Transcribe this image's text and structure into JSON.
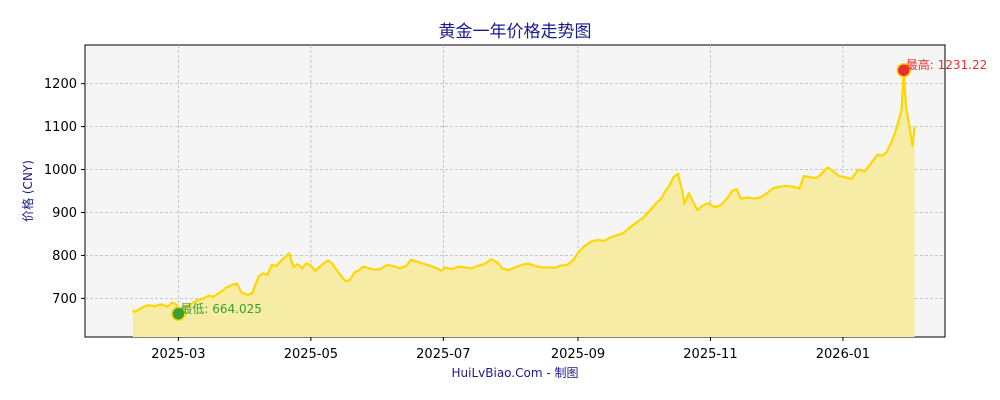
{
  "chart_data": {
    "type": "area",
    "title": "黄金一年价格走势图",
    "ylabel": "价格 (CNY)",
    "xlabel": "",
    "credit": "HuiLvBiao.Com - 制图",
    "xlim": [
      "2025-01-17",
      "2026-02-17"
    ],
    "ylim": [
      610,
      1290
    ],
    "yticks": [
      700,
      800,
      900,
      1000,
      1100,
      1200
    ],
    "xticks": [
      {
        "date": "2025-03-01",
        "label": "2025-03"
      },
      {
        "date": "2025-05-01",
        "label": "2025-05"
      },
      {
        "date": "2025-07-01",
        "label": "2025-07"
      },
      {
        "date": "2025-09-01",
        "label": "2025-09"
      },
      {
        "date": "2025-11-01",
        "label": "2025-11"
      },
      {
        "date": "2026-01-01",
        "label": "2026-01"
      }
    ],
    "grid": true,
    "series": [
      {
        "line_color": "#ffd700",
        "fill_color": "#f7eca6",
        "points": [
          [
            "2025-02-08",
            673
          ],
          [
            "2025-02-09",
            668
          ],
          [
            "2025-02-12",
            678
          ],
          [
            "2025-02-15",
            684
          ],
          [
            "2025-02-18",
            682
          ],
          [
            "2025-02-21",
            686
          ],
          [
            "2025-02-24",
            681
          ],
          [
            "2025-02-26",
            690
          ],
          [
            "2025-02-28",
            686
          ],
          [
            "2025-03-01",
            664.025
          ],
          [
            "2025-03-03",
            678
          ],
          [
            "2025-03-06",
            684
          ],
          [
            "2025-03-09",
            694
          ],
          [
            "2025-03-12",
            699
          ],
          [
            "2025-03-15",
            706
          ],
          [
            "2025-03-17",
            704
          ],
          [
            "2025-03-20",
            713
          ],
          [
            "2025-03-23",
            725
          ],
          [
            "2025-03-26",
            732
          ],
          [
            "2025-03-28",
            734
          ],
          [
            "2025-03-30",
            714
          ],
          [
            "2025-04-02",
            708
          ],
          [
            "2025-04-04",
            712
          ],
          [
            "2025-04-07",
            752
          ],
          [
            "2025-04-09",
            758
          ],
          [
            "2025-04-11",
            755
          ],
          [
            "2025-04-13",
            778
          ],
          [
            "2025-04-15",
            775
          ],
          [
            "2025-04-18",
            791
          ],
          [
            "2025-04-21",
            805
          ],
          [
            "2025-04-23",
            773
          ],
          [
            "2025-04-25",
            780
          ],
          [
            "2025-04-27",
            770
          ],
          [
            "2025-04-29",
            782
          ],
          [
            "2025-05-01",
            776
          ],
          [
            "2025-05-03",
            764
          ],
          [
            "2025-05-05",
            773
          ],
          [
            "2025-05-07",
            782
          ],
          [
            "2025-05-09",
            788
          ],
          [
            "2025-05-11",
            780
          ],
          [
            "2025-05-13",
            765
          ],
          [
            "2025-05-15",
            752
          ],
          [
            "2025-05-17",
            740
          ],
          [
            "2025-05-19",
            743
          ],
          [
            "2025-05-21",
            760
          ],
          [
            "2025-05-23",
            765
          ],
          [
            "2025-05-25",
            774
          ],
          [
            "2025-05-27",
            771
          ],
          [
            "2025-05-30",
            767
          ],
          [
            "2025-06-02",
            768
          ],
          [
            "2025-06-05",
            778
          ],
          [
            "2025-06-08",
            775
          ],
          [
            "2025-06-11",
            770
          ],
          [
            "2025-06-14",
            776
          ],
          [
            "2025-06-16",
            790
          ],
          [
            "2025-06-19",
            785
          ],
          [
            "2025-06-22",
            780
          ],
          [
            "2025-06-25",
            776
          ],
          [
            "2025-06-28",
            770
          ],
          [
            "2025-06-30",
            764
          ],
          [
            "2025-07-02",
            772
          ],
          [
            "2025-07-05",
            768
          ],
          [
            "2025-07-08",
            774
          ],
          [
            "2025-07-11",
            772
          ],
          [
            "2025-07-14",
            770
          ],
          [
            "2025-07-17",
            776
          ],
          [
            "2025-07-20",
            780
          ],
          [
            "2025-07-23",
            791
          ],
          [
            "2025-07-26",
            783
          ],
          [
            "2025-07-28",
            770
          ],
          [
            "2025-07-31",
            766
          ],
          [
            "2025-08-03",
            772
          ],
          [
            "2025-08-06",
            778
          ],
          [
            "2025-08-09",
            781
          ],
          [
            "2025-08-12",
            776
          ],
          [
            "2025-08-15",
            772
          ],
          [
            "2025-08-18",
            772
          ],
          [
            "2025-08-21",
            771
          ],
          [
            "2025-08-24",
            776
          ],
          [
            "2025-08-27",
            778
          ],
          [
            "2025-08-30",
            790
          ],
          [
            "2025-09-01",
            806
          ],
          [
            "2025-09-04",
            822
          ],
          [
            "2025-09-07",
            832
          ],
          [
            "2025-09-10",
            836
          ],
          [
            "2025-09-13",
            834
          ],
          [
            "2025-09-16",
            842
          ],
          [
            "2025-09-19",
            847
          ],
          [
            "2025-09-22",
            852
          ],
          [
            "2025-09-25",
            866
          ],
          [
            "2025-09-28",
            877
          ],
          [
            "2025-10-01",
            888
          ],
          [
            "2025-10-04",
            904
          ],
          [
            "2025-10-07",
            922
          ],
          [
            "2025-10-09",
            930
          ],
          [
            "2025-10-11",
            948
          ],
          [
            "2025-10-13",
            962
          ],
          [
            "2025-10-15",
            982
          ],
          [
            "2025-10-17",
            990
          ],
          [
            "2025-10-19",
            950
          ],
          [
            "2025-10-20",
            920
          ],
          [
            "2025-10-22",
            945
          ],
          [
            "2025-10-24",
            925
          ],
          [
            "2025-10-26",
            905
          ],
          [
            "2025-10-28",
            915
          ],
          [
            "2025-10-31",
            922
          ],
          [
            "2025-11-03",
            912
          ],
          [
            "2025-11-06",
            918
          ],
          [
            "2025-11-09",
            935
          ],
          [
            "2025-11-11",
            950
          ],
          [
            "2025-11-13",
            955
          ],
          [
            "2025-11-15",
            932
          ],
          [
            "2025-11-18",
            935
          ],
          [
            "2025-11-21",
            932
          ],
          [
            "2025-11-24",
            935
          ],
          [
            "2025-11-27",
            945
          ],
          [
            "2025-11-30",
            957
          ],
          [
            "2025-12-03",
            960
          ],
          [
            "2025-12-06",
            962
          ],
          [
            "2025-12-09",
            960
          ],
          [
            "2025-12-12",
            956
          ],
          [
            "2025-12-14",
            985
          ],
          [
            "2025-12-17",
            982
          ],
          [
            "2025-12-20",
            980
          ],
          [
            "2025-12-23",
            995
          ],
          [
            "2025-12-25",
            1005
          ],
          [
            "2025-12-27",
            998
          ],
          [
            "2025-12-30",
            985
          ],
          [
            "2026-01-02",
            982
          ],
          [
            "2026-01-05",
            978
          ],
          [
            "2026-01-08",
            1000
          ],
          [
            "2026-01-11",
            995
          ],
          [
            "2026-01-14",
            1015
          ],
          [
            "2026-01-17",
            1035
          ],
          [
            "2026-01-19",
            1032
          ],
          [
            "2026-01-21",
            1040
          ],
          [
            "2026-01-23",
            1060
          ],
          [
            "2026-01-25",
            1085
          ],
          [
            "2026-01-27",
            1120
          ],
          [
            "2026-01-28",
            1140
          ],
          [
            "2026-01-29",
            1231.22
          ],
          [
            "2026-01-30",
            1150
          ],
          [
            "2026-01-31",
            1118
          ],
          [
            "2026-02-02",
            1055
          ],
          [
            "2026-02-03",
            1100
          ]
        ]
      }
    ],
    "annotations": [
      {
        "label": "最高: 1231.22",
        "date": "2026-01-29",
        "value": 1231.22,
        "color": "#e83030"
      },
      {
        "label": "最低: 664.025",
        "date": "2025-03-01",
        "value": 664.025,
        "color": "#3aa030"
      }
    ]
  }
}
